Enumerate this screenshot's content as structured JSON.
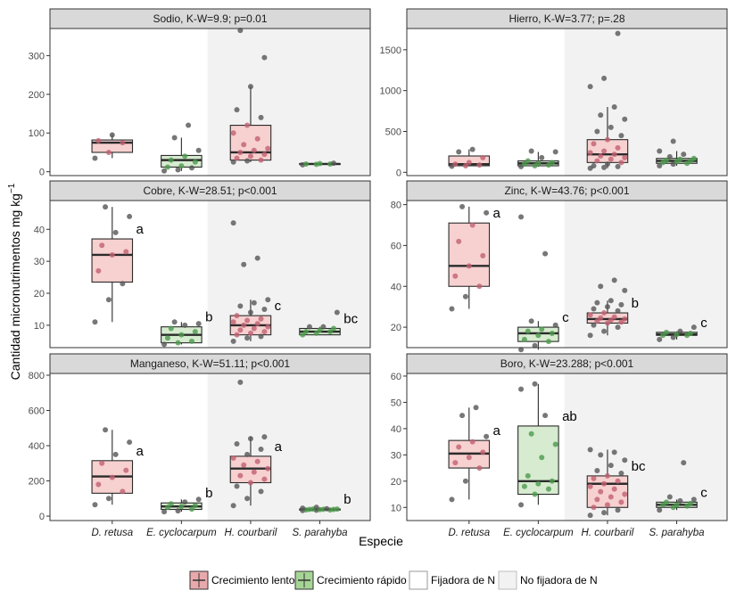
{
  "chart_data": {
    "type": "boxplot",
    "xlabel": "Especie",
    "ylabel": "Cantidad micronutrimentos mg kg",
    "ylabel_sup": "−1",
    "categories": [
      "D. retusa",
      "E. cyclocarpum",
      "H. courbaril",
      "S. parahyba"
    ],
    "growth": [
      "lento",
      "rapido",
      "lento",
      "rapido"
    ],
    "fixer": [
      "Fijadora de N",
      "Fijadora de N",
      "No fijadora de N",
      "No fijadora de N"
    ],
    "colors": {
      "lento_fill": "#f7d0d0",
      "rapido_fill": "#d6ebcf",
      "lento_key": "#e8a9ac",
      "rapido_key": "#a6d496",
      "point": "#555555",
      "point_lento": "#c06070",
      "point_rapido": "#4c9a4c",
      "strip_bg": "#d9d9d9",
      "non_fixer_bg": "#f2f2f2",
      "box_line": "#2b2b2b"
    },
    "legend": [
      {
        "label": "Crecimiento lento",
        "type": "lento"
      },
      {
        "label": "Crecimiento rápido",
        "type": "rapido"
      },
      {
        "label": "Fijadora de N",
        "type": "fixer"
      },
      {
        "label": "No fijadora de N",
        "type": "nonfixer"
      }
    ],
    "panels": [
      {
        "title": "Sodio, K-W=9.9; p=0.01",
        "ylim": [
          -10,
          370
        ],
        "yticks": [
          0,
          100,
          200,
          300
        ],
        "boxes": [
          {
            "q1": 50,
            "median": 75,
            "q3": 82,
            "wlow": 35,
            "whigh": 95,
            "points": [
              35,
              50,
              75,
              80,
              95
            ],
            "letter": ""
          },
          {
            "q1": 12,
            "median": 30,
            "q3": 42,
            "wlow": 2,
            "whigh": 88,
            "points": [
              2,
              5,
              10,
              12,
              15,
              25,
              30,
              40,
              55,
              88,
              120
            ],
            "letter": ""
          },
          {
            "q1": 30,
            "median": 50,
            "q3": 120,
            "wlow": 25,
            "whigh": 220,
            "points": [
              25,
              28,
              30,
              35,
              40,
              45,
              50,
              55,
              60,
              70,
              85,
              100,
              120,
              140,
              160,
              220,
              295,
              365
            ],
            "letter": ""
          },
          {
            "q1": 19,
            "median": 20,
            "q3": 21,
            "wlow": 18,
            "whigh": 22,
            "points": [
              18,
              19,
              20,
              20,
              21,
              22
            ],
            "letter": ""
          }
        ]
      },
      {
        "title": "Hierro, K-W=3.77; p=.28",
        "ylim": [
          -40,
          1760
        ],
        "yticks": [
          0,
          500,
          1000,
          1500
        ],
        "boxes": [
          {
            "q1": 80,
            "median": 100,
            "q3": 200,
            "wlow": 75,
            "whigh": 280,
            "points": [
              75,
              80,
              90,
              100,
              120,
              180,
              250,
              280
            ],
            "letter": ""
          },
          {
            "q1": 80,
            "median": 110,
            "q3": 140,
            "wlow": 70,
            "whigh": 250,
            "points": [
              70,
              80,
              90,
              100,
              110,
              120,
              140,
              180,
              250,
              260
            ],
            "letter": ""
          },
          {
            "q1": 120,
            "median": 220,
            "q3": 400,
            "wlow": 50,
            "whigh": 800,
            "points": [
              50,
              60,
              70,
              80,
              100,
              120,
              140,
              160,
              180,
              200,
              220,
              240,
              260,
              300,
              350,
              400,
              450,
              500,
              550,
              650,
              700,
              800,
              1050,
              1150,
              1700
            ],
            "letter": ""
          },
          {
            "q1": 110,
            "median": 140,
            "q3": 170,
            "wlow": 80,
            "whigh": 260,
            "points": [
              80,
              100,
              110,
              120,
              130,
              140,
              150,
              160,
              170,
              190,
              220,
              260,
              380
            ],
            "letter": ""
          }
        ]
      },
      {
        "title": "Cobre, K-W=28.51; p<0.001",
        "ylim": [
          3,
          49
        ],
        "yticks": [
          10,
          20,
          30,
          40
        ],
        "boxes": [
          {
            "q1": 23.5,
            "median": 32,
            "q3": 37,
            "wlow": 11,
            "whigh": 47,
            "points": [
              11,
              18,
              23,
              27,
              32,
              33,
              35,
              39,
              44,
              47
            ],
            "letter": "a"
          },
          {
            "q1": 4.5,
            "median": 7,
            "q3": 9.5,
            "wlow": 4,
            "whigh": 11,
            "points": [
              4,
              4.5,
              5,
              6,
              7,
              8,
              9,
              10,
              10.5,
              11
            ],
            "letter": "b"
          },
          {
            "q1": 7,
            "median": 10,
            "q3": 13,
            "wlow": 5,
            "whigh": 18,
            "points": [
              5,
              6,
              6.5,
              7,
              7.5,
              8,
              8.5,
              9,
              9.5,
              10,
              10.5,
              11,
              11.5,
              12,
              13,
              14,
              15,
              16,
              17,
              18,
              29,
              31,
              42
            ],
            "letter": "c"
          },
          {
            "q1": 7,
            "median": 8,
            "q3": 9,
            "wlow": 7,
            "whigh": 9.5,
            "points": [
              7,
              7.5,
              8,
              8,
              8.5,
              9,
              9.5,
              9.5,
              14
            ],
            "letter": "bc"
          }
        ]
      },
      {
        "title": "Zinc, K-W=43.76; p<0.001",
        "ylim": [
          10,
          82
        ],
        "yticks": [
          20,
          40,
          60,
          80
        ],
        "boxes": [
          {
            "q1": 40,
            "median": 50,
            "q3": 71,
            "wlow": 29,
            "whigh": 79,
            "points": [
              29,
              35,
              40,
              45,
              50,
              55,
              62,
              70,
              76,
              79
            ],
            "letter": "a"
          },
          {
            "q1": 13,
            "median": 17,
            "q3": 20,
            "wlow": 9,
            "whigh": 23,
            "points": [
              9,
              11,
              13,
              14,
              16,
              17,
              18,
              19,
              21,
              23,
              56,
              74
            ],
            "letter": "c"
          },
          {
            "q1": 22,
            "median": 24,
            "q3": 27,
            "wlow": 16,
            "whigh": 33,
            "points": [
              16,
              18,
              20,
              21,
              22,
              22.5,
              23,
              23.5,
              24,
              24.5,
              25,
              26,
              27,
              28,
              29,
              30,
              31,
              32,
              33,
              38,
              40,
              43
            ],
            "letter": "b"
          },
          {
            "q1": 16,
            "median": 16.5,
            "q3": 17.5,
            "wlow": 14,
            "whigh": 18,
            "points": [
              14,
              15,
              16,
              16,
              16.5,
              17,
              17.5,
              18,
              20
            ],
            "letter": "c"
          }
        ]
      },
      {
        "title": "Manganeso, K-W=51.11; p<0.001",
        "ylim": [
          -25,
          810
        ],
        "yticks": [
          0,
          200,
          400,
          600,
          800
        ],
        "boxes": [
          {
            "q1": 130,
            "median": 225,
            "q3": 315,
            "wlow": 65,
            "whigh": 490,
            "points": [
              65,
              100,
              140,
              180,
              220,
              260,
              300,
              350,
              420,
              490
            ],
            "letter": "a"
          },
          {
            "q1": 38,
            "median": 55,
            "q3": 75,
            "wlow": 25,
            "whigh": 95,
            "points": [
              25,
              30,
              40,
              50,
              55,
              60,
              70,
              80,
              95
            ],
            "letter": "b"
          },
          {
            "q1": 190,
            "median": 270,
            "q3": 340,
            "wlow": 60,
            "whigh": 450,
            "points": [
              60,
              100,
              140,
              170,
              190,
              210,
              230,
              250,
              270,
              290,
              310,
              330,
              350,
              380,
              410,
              440,
              450,
              760
            ],
            "letter": "a"
          },
          {
            "q1": 35,
            "median": 38,
            "q3": 40,
            "wlow": 32,
            "whigh": 45,
            "points": [
              32,
              34,
              35,
              36,
              37,
              38,
              38,
              39,
              40,
              40,
              42,
              45,
              50
            ],
            "letter": "b"
          }
        ]
      },
      {
        "title": "Boro, K-W=23.288; p<0.001",
        "ylim": [
          5,
          61
        ],
        "yticks": [
          10,
          20,
          30,
          40,
          50,
          60
        ],
        "boxes": [
          {
            "q1": 25,
            "median": 30.5,
            "q3": 35.5,
            "wlow": 13,
            "whigh": 48,
            "points": [
              13,
              20,
              25,
              27,
              29,
              31,
              33,
              35,
              37,
              45,
              48
            ],
            "letter": "a"
          },
          {
            "q1": 15,
            "median": 20,
            "q3": 41,
            "wlow": 11,
            "whigh": 57,
            "points": [
              11,
              15,
              17,
              18,
              19,
              20,
              22,
              29,
              34,
              38,
              45,
              55,
              57
            ],
            "letter": "ab"
          },
          {
            "q1": 10,
            "median": 19,
            "q3": 22,
            "wlow": 7,
            "whigh": 32,
            "points": [
              7,
              8,
              9,
              10,
              11,
              12,
              13,
              14,
              15,
              16,
              17,
              18,
              19,
              20,
              21,
              22,
              23,
              24,
              26,
              28,
              30,
              31,
              32
            ],
            "letter": "bc"
          },
          {
            "q1": 10,
            "median": 11,
            "q3": 12,
            "wlow": 9,
            "whigh": 13,
            "points": [
              9,
              10,
              10.5,
              11,
              11,
              11.5,
              12,
              12.5,
              13,
              14,
              27
            ],
            "letter": "c"
          }
        ]
      }
    ]
  }
}
